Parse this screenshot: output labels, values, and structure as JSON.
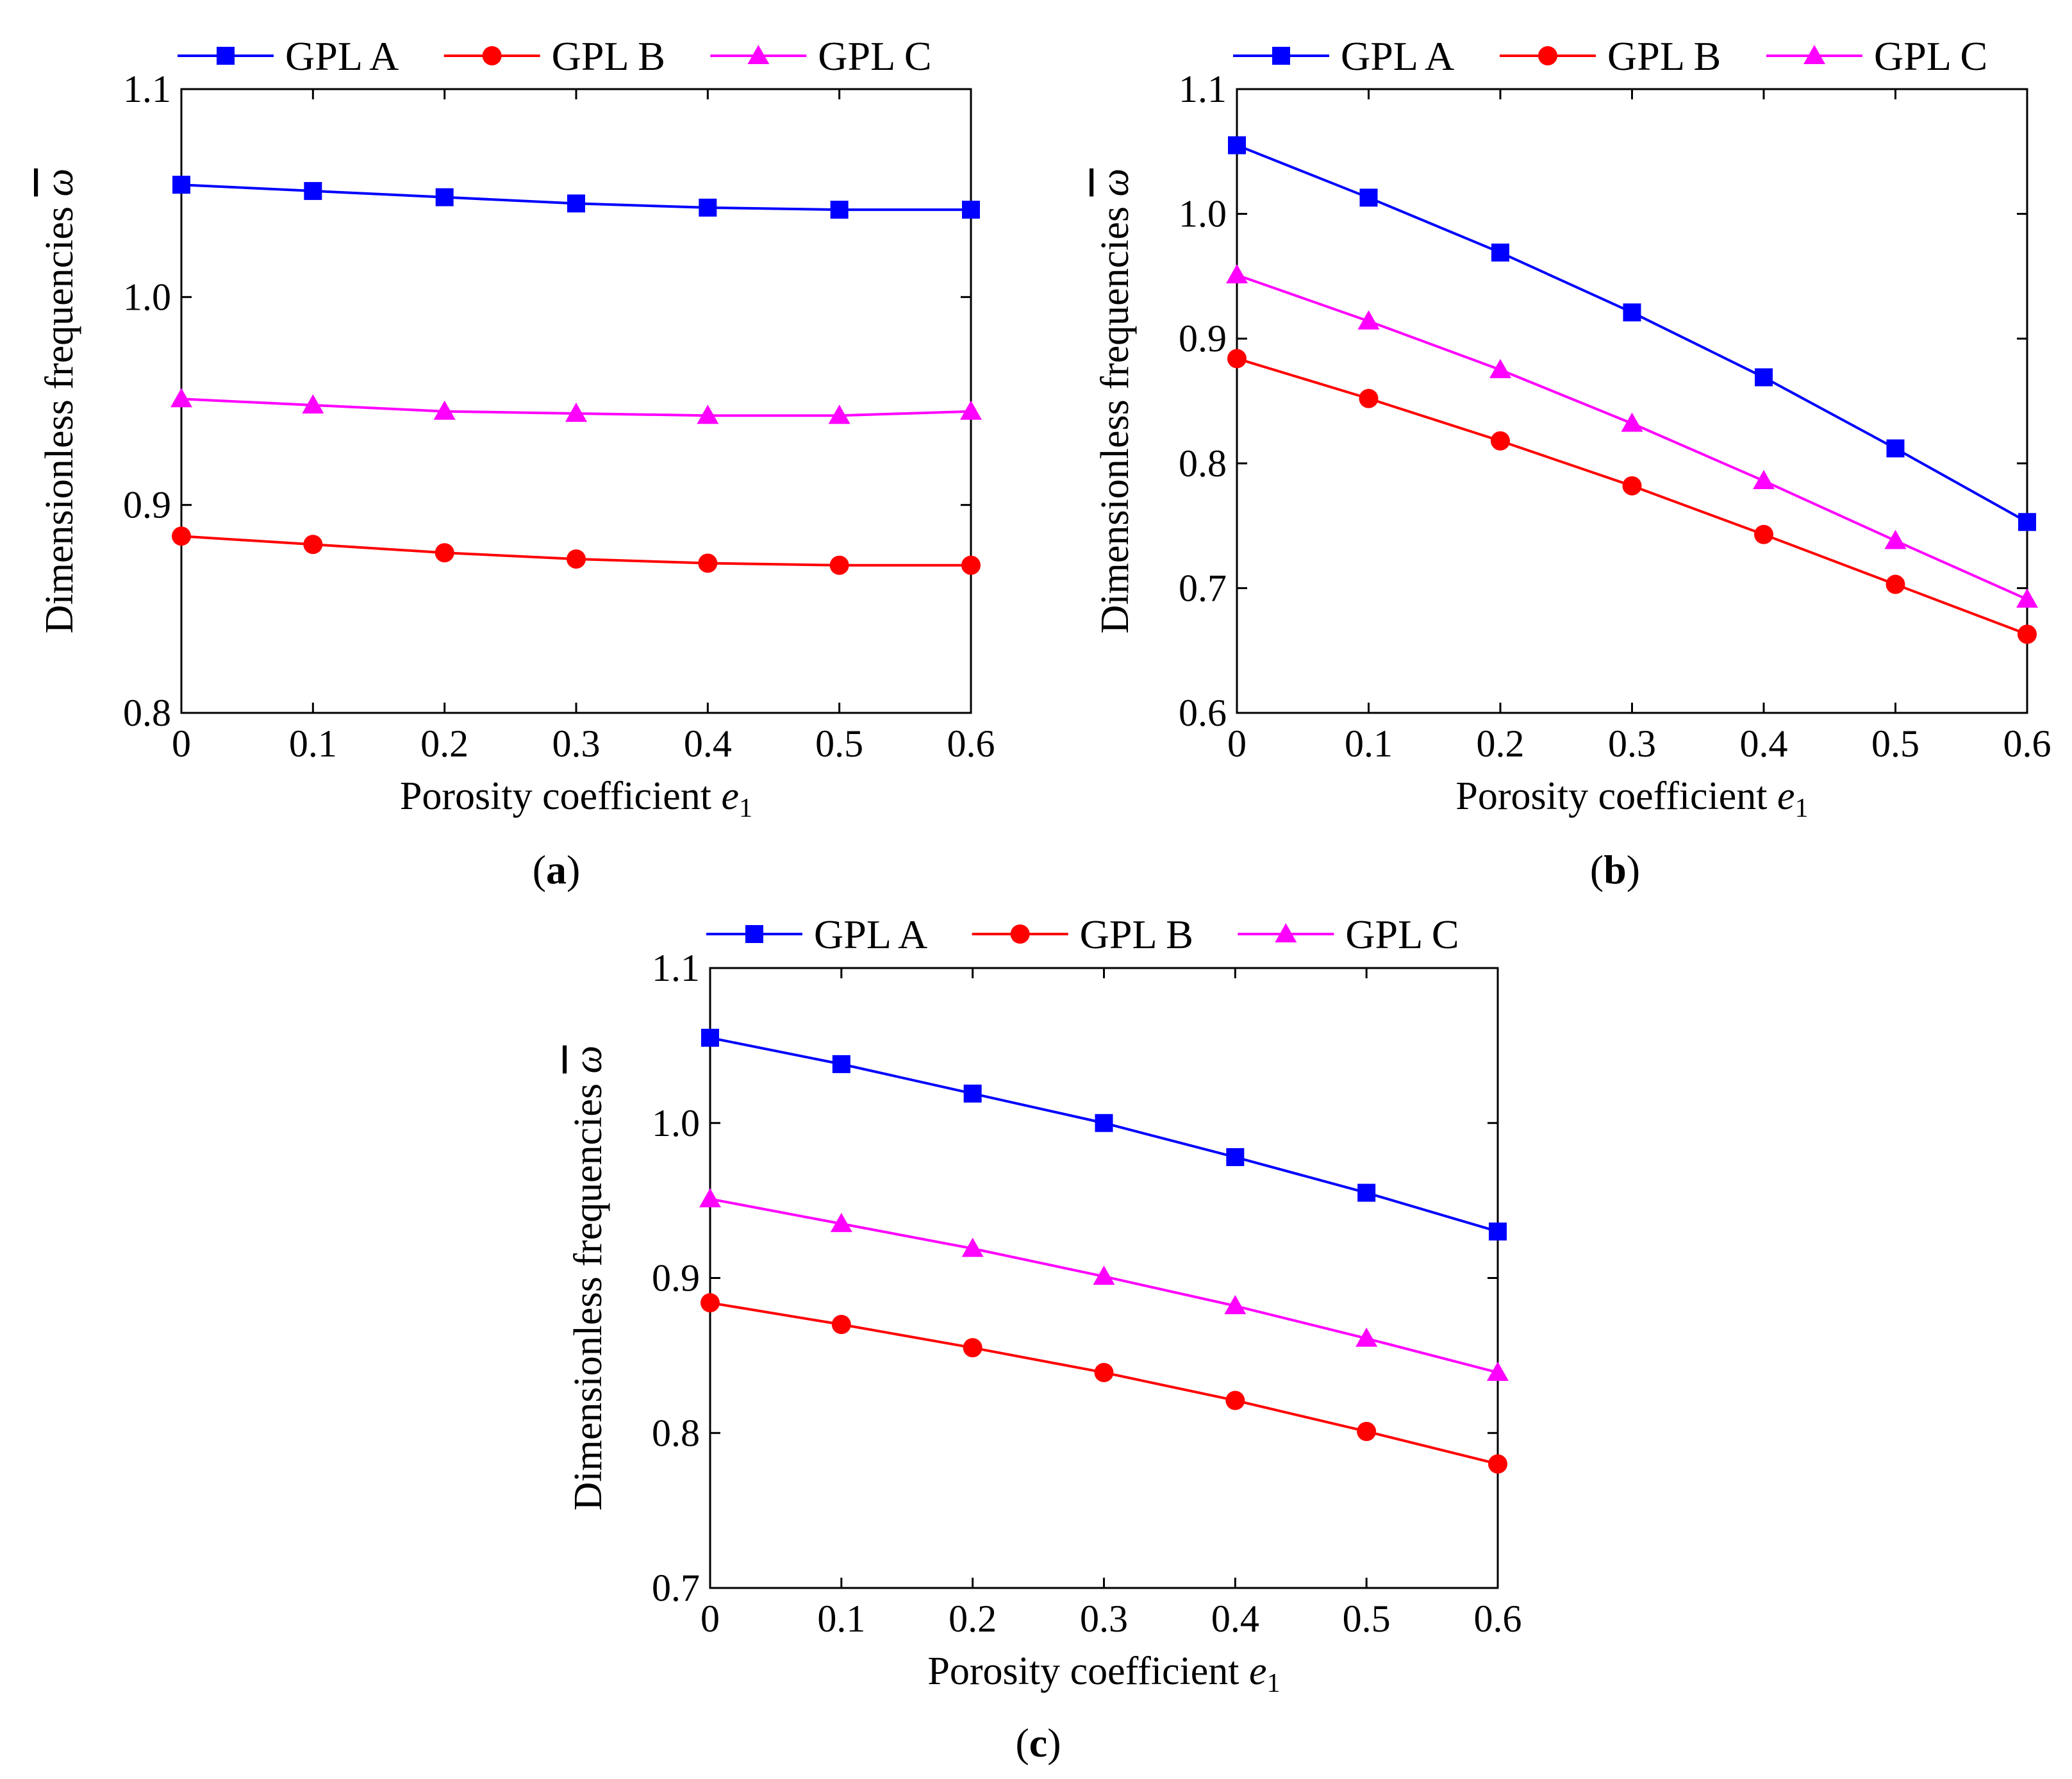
{
  "figure": {
    "legend_position": "top, outside plot area",
    "x_tick_labels": [
      "0",
      "0.1",
      "0.2",
      "0.3",
      "0.4",
      "0.5",
      "0.6"
    ]
  },
  "chart_data": [
    {
      "panel": "a",
      "panel_label": "(a)",
      "type": "line",
      "title": "",
      "xlabel": "Porosity coefficient e1",
      "xlabel_main": "Porosity coefficient ",
      "xlabel_var": "e",
      "xlabel_sub": "1",
      "ylabel": "Dimensionless frequencies ω̄",
      "ylabel_main": "Dimensionless frequencies ",
      "ylabel_symbol": "ω",
      "x": [
        0,
        0.1,
        0.2,
        0.3,
        0.4,
        0.5,
        0.6
      ],
      "xlim": [
        0,
        0.6
      ],
      "ylim": [
        0.8,
        1.1
      ],
      "yticks": [
        0.8,
        0.9,
        1.0,
        1.1
      ],
      "ytick_labels": [
        "0.8",
        "0.9",
        "1.0",
        "1.1"
      ],
      "grid": false,
      "series": [
        {
          "name": "GPL A",
          "color": "#0000FF",
          "marker": "square",
          "values": [
            1.054,
            1.051,
            1.048,
            1.045,
            1.043,
            1.042,
            1.042
          ]
        },
        {
          "name": "GPL B",
          "color": "#FF0000",
          "marker": "circle",
          "values": [
            0.885,
            0.881,
            0.877,
            0.874,
            0.872,
            0.871,
            0.871
          ]
        },
        {
          "name": "GPL C",
          "color": "#FF00FF",
          "marker": "triangle",
          "values": [
            0.951,
            0.948,
            0.945,
            0.944,
            0.943,
            0.943,
            0.945
          ]
        }
      ]
    },
    {
      "panel": "b",
      "panel_label": "(b)",
      "type": "line",
      "title": "",
      "xlabel": "Porosity coefficient e1",
      "xlabel_main": "Porosity coefficient ",
      "xlabel_var": "e",
      "xlabel_sub": "1",
      "ylabel": "Dimensionless frequencies ω̄",
      "ylabel_main": "Dimensionless frequencies ",
      "ylabel_symbol": "ω",
      "x": [
        0,
        0.1,
        0.2,
        0.3,
        0.4,
        0.5,
        0.6
      ],
      "xlim": [
        0,
        0.6
      ],
      "ylim": [
        0.6,
        1.1
      ],
      "yticks": [
        0.6,
        0.7,
        0.8,
        0.9,
        1.0,
        1.1
      ],
      "ytick_labels": [
        "0.6",
        "0.7",
        "0.8",
        "0.9",
        "1.0",
        "1.1"
      ],
      "grid": false,
      "series": [
        {
          "name": "GPL A",
          "color": "#0000FF",
          "marker": "square",
          "values": [
            1.055,
            1.013,
            0.969,
            0.921,
            0.869,
            0.812,
            0.753
          ]
        },
        {
          "name": "GPL B",
          "color": "#FF0000",
          "marker": "circle",
          "values": [
            0.884,
            0.852,
            0.818,
            0.782,
            0.743,
            0.703,
            0.663
          ]
        },
        {
          "name": "GPL C",
          "color": "#FF00FF",
          "marker": "triangle",
          "values": [
            0.951,
            0.914,
            0.875,
            0.832,
            0.786,
            0.738,
            0.691
          ]
        }
      ]
    },
    {
      "panel": "c",
      "panel_label": "(c)",
      "type": "line",
      "title": "",
      "xlabel": "Porosity coefficient e1",
      "xlabel_main": "Porosity coefficient ",
      "xlabel_var": "e",
      "xlabel_sub": "1",
      "ylabel": "Dimensionless frequencies ω̄",
      "ylabel_main": "Dimensionless frequencies ",
      "ylabel_symbol": "ω",
      "x": [
        0,
        0.1,
        0.2,
        0.3,
        0.4,
        0.5,
        0.6
      ],
      "xlim": [
        0,
        0.6
      ],
      "ylim": [
        0.7,
        1.1
      ],
      "yticks": [
        0.7,
        0.8,
        0.9,
        1.0,
        1.1
      ],
      "ytick_labels": [
        "0.7",
        "0.8",
        "0.9",
        "1.0",
        "1.1"
      ],
      "grid": false,
      "series": [
        {
          "name": "GPL A",
          "color": "#0000FF",
          "marker": "square",
          "values": [
            1.055,
            1.038,
            1.019,
            1.0,
            0.978,
            0.955,
            0.93
          ]
        },
        {
          "name": "GPL B",
          "color": "#FF0000",
          "marker": "circle",
          "values": [
            0.884,
            0.87,
            0.855,
            0.839,
            0.821,
            0.801,
            0.78
          ]
        },
        {
          "name": "GPL C",
          "color": "#FF00FF",
          "marker": "triangle",
          "values": [
            0.951,
            0.935,
            0.919,
            0.901,
            0.882,
            0.861,
            0.839
          ]
        }
      ]
    }
  ]
}
